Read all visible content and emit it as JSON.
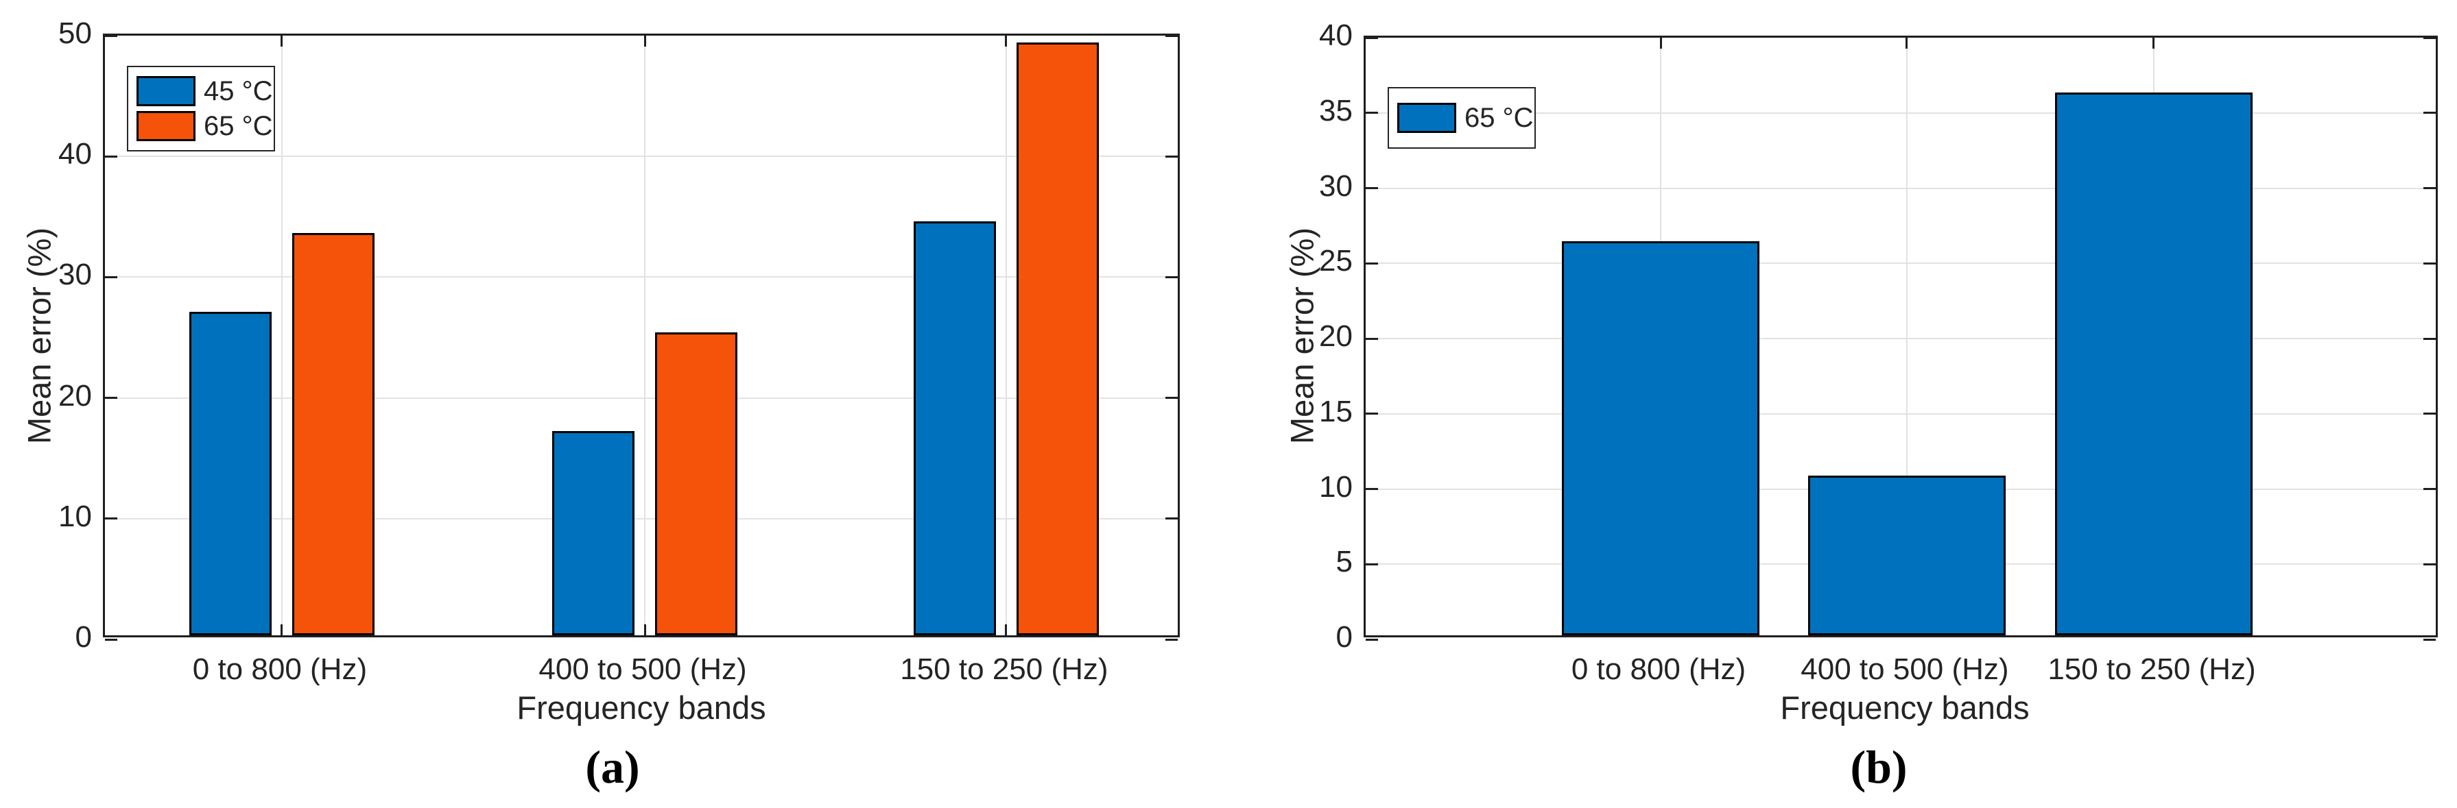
{
  "figure": {
    "background": "#ffffff",
    "captions": {
      "a": "(a)",
      "b": "(b)"
    },
    "colors": {
      "series_blue": "#0072BD",
      "series_orange": "#F5520A",
      "gridline": "#E2E2E2",
      "axis": "#1F1F1F",
      "text": "#242424"
    }
  },
  "chart_data": [
    {
      "id": "a",
      "type": "bar",
      "title": "",
      "xlabel": "Frequency bands",
      "ylabel": "Mean error (%)",
      "categories": [
        "0 to 800 (Hz)",
        "400 to 500 (Hz)",
        "150 to 250 (Hz)"
      ],
      "series": [
        {
          "name": "45 °C",
          "color": "#0072BD",
          "values": [
            26.8,
            16.9,
            34.3
          ]
        },
        {
          "name": "65 °C",
          "color": "#F5520A",
          "values": [
            33.3,
            25.1,
            49.1
          ]
        }
      ],
      "ylim": [
        0,
        50
      ],
      "yticks": [
        0,
        10,
        20,
        30,
        40,
        50
      ],
      "grid": true,
      "legend_position": "top-left",
      "panel_caption": "(a)"
    },
    {
      "id": "b",
      "type": "bar",
      "title": "",
      "xlabel": "Frequency bands",
      "ylabel": "Mean error (%)",
      "categories": [
        "0 to 800 (Hz)",
        "400 to 500 (Hz)",
        "150 to 250 (Hz)"
      ],
      "series": [
        {
          "name": "65 °C",
          "color": "#0072BD",
          "values": [
            26.2,
            10.6,
            36.1
          ]
        }
      ],
      "ylim": [
        0,
        40
      ],
      "yticks": [
        0,
        5,
        10,
        15,
        20,
        25,
        30,
        35,
        40
      ],
      "grid": true,
      "legend_position": "top-left",
      "panel_caption": "(b)"
    }
  ]
}
